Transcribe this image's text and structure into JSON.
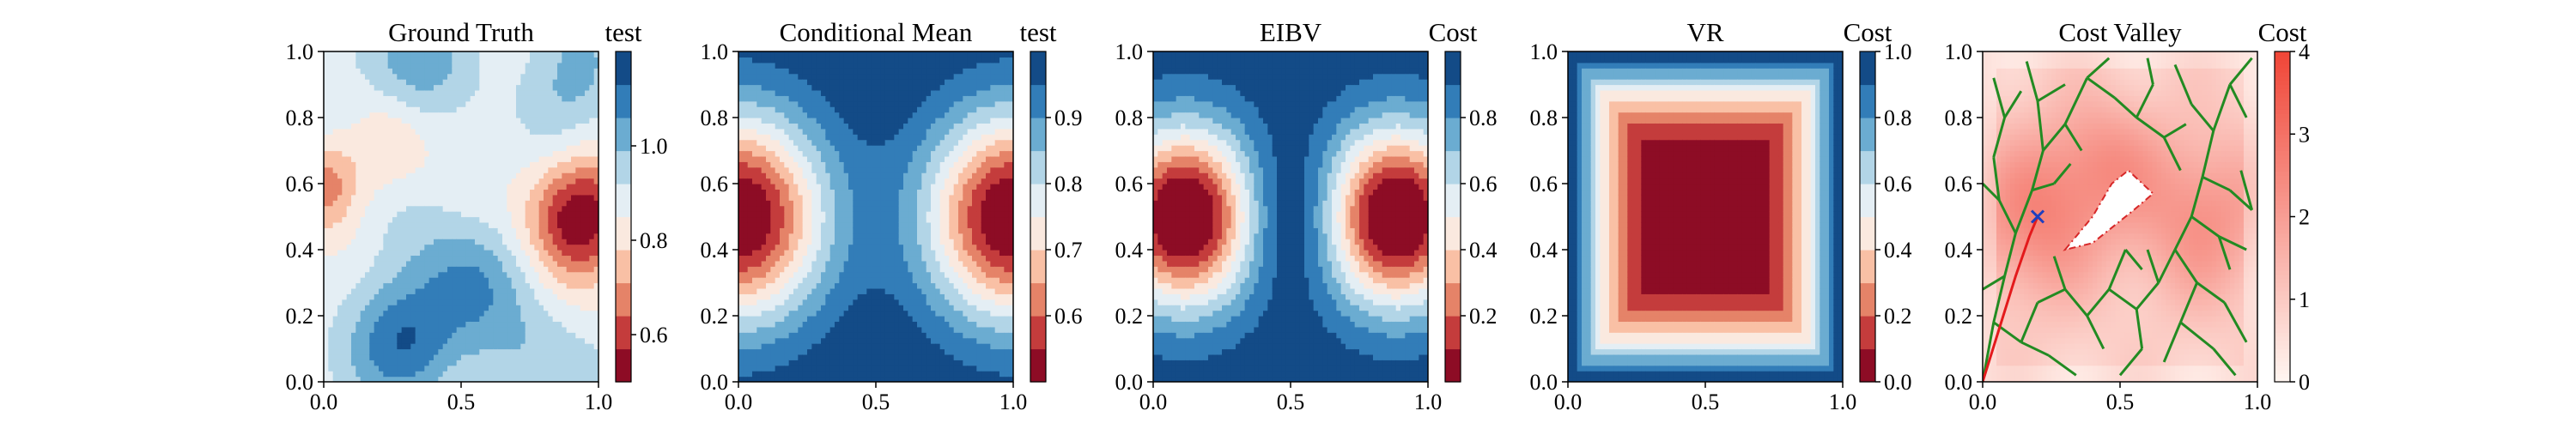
{
  "chart_data": [
    {
      "type": "heatmap",
      "title": "Ground Truth",
      "colorbar_label": "test",
      "xlim": [
        0.0,
        1.0
      ],
      "ylim": [
        0.0,
        1.0
      ],
      "x_ticks": [
        "0.0",
        "0.5",
        "1.0"
      ],
      "y_ticks": [
        "0.0",
        "0.2",
        "0.4",
        "0.6",
        "0.8",
        "1.0"
      ],
      "colorbar_range": [
        0.5,
        1.2
      ],
      "colorbar_ticks": [
        "0.6",
        "0.8",
        "1.0"
      ],
      "colorbar_tick_values": [
        0.6,
        0.8,
        1.0
      ],
      "field": "ground_truth"
    },
    {
      "type": "heatmap",
      "title": "Conditional Mean",
      "colorbar_label": "test",
      "xlim": [
        0.0,
        1.0
      ],
      "ylim": [
        0.0,
        1.0
      ],
      "x_ticks": [
        "0.0",
        "0.5",
        "1.0"
      ],
      "y_ticks": [
        "0.0",
        "0.2",
        "0.4",
        "0.6",
        "0.8",
        "1.0"
      ],
      "colorbar_range": [
        0.5,
        1.0
      ],
      "colorbar_ticks": [
        "0.6",
        "0.7",
        "0.8",
        "0.9"
      ],
      "colorbar_tick_values": [
        0.6,
        0.7,
        0.8,
        0.9
      ],
      "field": "conditional_mean"
    },
    {
      "type": "heatmap",
      "title": "EIBV",
      "colorbar_label": "Cost",
      "xlim": [
        0.0,
        1.0
      ],
      "ylim": [
        0.0,
        1.0
      ],
      "x_ticks": [
        "0.0",
        "0.5",
        "1.0"
      ],
      "y_ticks": [
        "0.0",
        "0.2",
        "0.4",
        "0.6",
        "0.8",
        "1.0"
      ],
      "colorbar_range": [
        0.0,
        1.0
      ],
      "colorbar_ticks": [
        "0.2",
        "0.4",
        "0.6",
        "0.8"
      ],
      "colorbar_tick_values": [
        0.2,
        0.4,
        0.6,
        0.8
      ],
      "field": "eibv"
    },
    {
      "type": "heatmap",
      "title": "VR",
      "colorbar_label": "Cost",
      "xlim": [
        0.0,
        1.0
      ],
      "ylim": [
        0.0,
        1.0
      ],
      "x_ticks": [
        "0.0",
        "0.5",
        "1.0"
      ],
      "y_ticks": [
        "0.0",
        "0.2",
        "0.4",
        "0.6",
        "0.8",
        "1.0"
      ],
      "colorbar_range": [
        0.0,
        1.0
      ],
      "colorbar_ticks": [
        "0.0",
        "0.2",
        "0.4",
        "0.6",
        "0.8",
        "1.0"
      ],
      "colorbar_tick_values": [
        0.0,
        0.2,
        0.4,
        0.6,
        0.8,
        1.0
      ],
      "field": "vr"
    },
    {
      "type": "heatmap",
      "title": "Cost Valley",
      "colorbar_label": "Cost",
      "xlim": [
        0.0,
        1.0
      ],
      "ylim": [
        0.0,
        1.0
      ],
      "x_ticks": [
        "0.0",
        "0.5",
        "1.0"
      ],
      "y_ticks": [
        "0.0",
        "0.2",
        "0.4",
        "0.6",
        "0.8",
        "1.0"
      ],
      "colorbar_range": [
        0,
        4
      ],
      "colorbar_ticks": [
        "0",
        "1",
        "2",
        "3",
        "4"
      ],
      "colorbar_tick_values": [
        0,
        1,
        2,
        3,
        4
      ],
      "field": "cost_valley",
      "obstacle_polygon": [
        [
          0.3,
          0.4
        ],
        [
          0.4,
          0.5
        ],
        [
          0.47,
          0.6
        ],
        [
          0.53,
          0.64
        ],
        [
          0.62,
          0.57
        ],
        [
          0.55,
          0.52
        ],
        [
          0.4,
          0.42
        ]
      ],
      "tree_origin": [
        0.0,
        0.0
      ],
      "current_location": [
        0.2,
        0.5
      ],
      "planned_path": [
        [
          0.0,
          0.0
        ],
        [
          0.06,
          0.16
        ],
        [
          0.12,
          0.32
        ],
        [
          0.17,
          0.44
        ],
        [
          0.2,
          0.5
        ]
      ],
      "tree_edges": [
        [
          [
            0.0,
            0.0
          ],
          [
            0.04,
            0.18
          ]
        ],
        [
          [
            0.04,
            0.18
          ],
          [
            0.08,
            0.32
          ]
        ],
        [
          [
            0.08,
            0.32
          ],
          [
            0.12,
            0.45
          ]
        ],
        [
          [
            0.12,
            0.45
          ],
          [
            0.06,
            0.55
          ]
        ],
        [
          [
            0.06,
            0.55
          ],
          [
            0.0,
            0.6
          ]
        ],
        [
          [
            0.12,
            0.45
          ],
          [
            0.18,
            0.58
          ]
        ],
        [
          [
            0.18,
            0.58
          ],
          [
            0.22,
            0.7
          ]
        ],
        [
          [
            0.22,
            0.7
          ],
          [
            0.2,
            0.85
          ]
        ],
        [
          [
            0.2,
            0.85
          ],
          [
            0.16,
            0.97
          ]
        ],
        [
          [
            0.22,
            0.7
          ],
          [
            0.3,
            0.78
          ]
        ],
        [
          [
            0.3,
            0.78
          ],
          [
            0.38,
            0.92
          ]
        ],
        [
          [
            0.3,
            0.78
          ],
          [
            0.36,
            0.7
          ]
        ],
        [
          [
            0.18,
            0.58
          ],
          [
            0.26,
            0.6
          ]
        ],
        [
          [
            0.26,
            0.6
          ],
          [
            0.32,
            0.66
          ]
        ],
        [
          [
            0.08,
            0.32
          ],
          [
            0.0,
            0.28
          ]
        ],
        [
          [
            0.04,
            0.18
          ],
          [
            0.14,
            0.12
          ]
        ],
        [
          [
            0.14,
            0.12
          ],
          [
            0.24,
            0.08
          ]
        ],
        [
          [
            0.24,
            0.08
          ],
          [
            0.34,
            0.02
          ]
        ],
        [
          [
            0.14,
            0.12
          ],
          [
            0.2,
            0.24
          ]
        ],
        [
          [
            0.2,
            0.24
          ],
          [
            0.3,
            0.28
          ]
        ],
        [
          [
            0.3,
            0.28
          ],
          [
            0.38,
            0.2
          ]
        ],
        [
          [
            0.38,
            0.2
          ],
          [
            0.46,
            0.28
          ]
        ],
        [
          [
            0.46,
            0.28
          ],
          [
            0.52,
            0.4
          ]
        ],
        [
          [
            0.46,
            0.28
          ],
          [
            0.56,
            0.22
          ]
        ],
        [
          [
            0.56,
            0.22
          ],
          [
            0.64,
            0.3
          ]
        ],
        [
          [
            0.64,
            0.3
          ],
          [
            0.7,
            0.4
          ]
        ],
        [
          [
            0.7,
            0.4
          ],
          [
            0.76,
            0.5
          ]
        ],
        [
          [
            0.76,
            0.5
          ],
          [
            0.8,
            0.62
          ]
        ],
        [
          [
            0.8,
            0.62
          ],
          [
            0.84,
            0.76
          ]
        ],
        [
          [
            0.84,
            0.76
          ],
          [
            0.9,
            0.9
          ]
        ],
        [
          [
            0.9,
            0.9
          ],
          [
            0.98,
            0.98
          ]
        ],
        [
          [
            0.84,
            0.76
          ],
          [
            0.76,
            0.84
          ]
        ],
        [
          [
            0.76,
            0.84
          ],
          [
            0.7,
            0.96
          ]
        ],
        [
          [
            0.8,
            0.62
          ],
          [
            0.9,
            0.58
          ]
        ],
        [
          [
            0.9,
            0.58
          ],
          [
            0.98,
            0.52
          ]
        ],
        [
          [
            0.76,
            0.5
          ],
          [
            0.86,
            0.44
          ]
        ],
        [
          [
            0.86,
            0.44
          ],
          [
            0.96,
            0.4
          ]
        ],
        [
          [
            0.7,
            0.4
          ],
          [
            0.78,
            0.3
          ]
        ],
        [
          [
            0.78,
            0.3
          ],
          [
            0.88,
            0.24
          ]
        ],
        [
          [
            0.88,
            0.24
          ],
          [
            0.96,
            0.12
          ]
        ],
        [
          [
            0.78,
            0.3
          ],
          [
            0.72,
            0.18
          ]
        ],
        [
          [
            0.72,
            0.18
          ],
          [
            0.66,
            0.06
          ]
        ],
        [
          [
            0.72,
            0.18
          ],
          [
            0.84,
            0.1
          ]
        ],
        [
          [
            0.84,
            0.1
          ],
          [
            0.92,
            0.02
          ]
        ],
        [
          [
            0.56,
            0.22
          ],
          [
            0.58,
            0.1
          ]
        ],
        [
          [
            0.58,
            0.1
          ],
          [
            0.5,
            0.02
          ]
        ],
        [
          [
            0.3,
            0.28
          ],
          [
            0.26,
            0.38
          ]
        ],
        [
          [
            0.38,
            0.2
          ],
          [
            0.44,
            0.1
          ]
        ],
        [
          [
            0.2,
            0.85
          ],
          [
            0.3,
            0.9
          ]
        ],
        [
          [
            0.38,
            0.92
          ],
          [
            0.46,
            0.98
          ]
        ],
        [
          [
            0.38,
            0.92
          ],
          [
            0.48,
            0.86
          ]
        ],
        [
          [
            0.48,
            0.86
          ],
          [
            0.56,
            0.8
          ]
        ],
        [
          [
            0.56,
            0.8
          ],
          [
            0.62,
            0.9
          ]
        ],
        [
          [
            0.62,
            0.9
          ],
          [
            0.6,
            0.98
          ]
        ],
        [
          [
            0.56,
            0.8
          ],
          [
            0.66,
            0.74
          ]
        ],
        [
          [
            0.66,
            0.74
          ],
          [
            0.72,
            0.64
          ]
        ],
        [
          [
            0.66,
            0.74
          ],
          [
            0.74,
            0.78
          ]
        ],
        [
          [
            0.9,
            0.9
          ],
          [
            0.96,
            0.8
          ]
        ],
        [
          [
            0.52,
            0.4
          ],
          [
            0.58,
            0.34
          ]
        ],
        [
          [
            0.64,
            0.3
          ],
          [
            0.6,
            0.4
          ]
        ],
        [
          [
            0.86,
            0.44
          ],
          [
            0.9,
            0.34
          ]
        ],
        [
          [
            0.98,
            0.52
          ],
          [
            0.94,
            0.64
          ]
        ],
        [
          [
            0.06,
            0.55
          ],
          [
            0.04,
            0.68
          ]
        ],
        [
          [
            0.04,
            0.68
          ],
          [
            0.08,
            0.8
          ]
        ],
        [
          [
            0.08,
            0.8
          ],
          [
            0.04,
            0.92
          ]
        ],
        [
          [
            0.08,
            0.8
          ],
          [
            0.14,
            0.88
          ]
        ]
      ]
    }
  ]
}
